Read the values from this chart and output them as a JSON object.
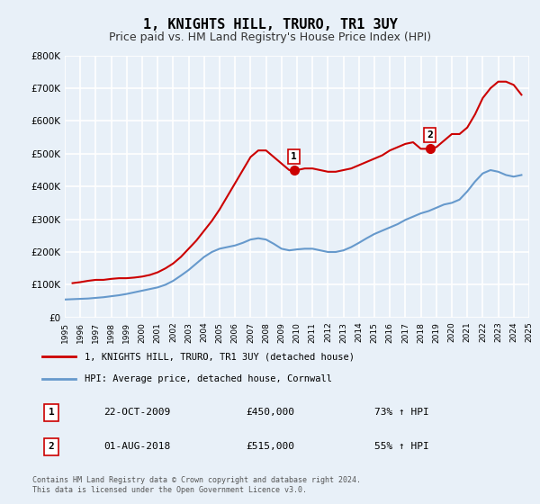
{
  "title": "1, KNIGHTS HILL, TRURO, TR1 3UY",
  "subtitle": "Price paid vs. HM Land Registry's House Price Index (HPI)",
  "title_fontsize": 11,
  "subtitle_fontsize": 9,
  "ylabel": "",
  "ylim": [
    0,
    800000
  ],
  "yticks": [
    0,
    100000,
    200000,
    300000,
    400000,
    500000,
    600000,
    700000,
    800000
  ],
  "ytick_labels": [
    "£0",
    "£100K",
    "£200K",
    "£300K",
    "£400K",
    "£500K",
    "£600K",
    "£700K",
    "£800K"
  ],
  "background_color": "#e8f0f8",
  "plot_bg_color": "#e8f0f8",
  "grid_color": "#ffffff",
  "house_color": "#cc0000",
  "hpi_color": "#6699cc",
  "legend_label_house": "1, KNIGHTS HILL, TRURO, TR1 3UY (detached house)",
  "legend_label_hpi": "HPI: Average price, detached house, Cornwall",
  "sale1_label": "1",
  "sale1_date": "22-OCT-2009",
  "sale1_price": "£450,000",
  "sale1_hpi": "73% ↑ HPI",
  "sale1_x": 2009.81,
  "sale1_y": 450000,
  "sale2_label": "2",
  "sale2_date": "01-AUG-2018",
  "sale2_price": "£515,000",
  "sale2_hpi": "55% ↑ HPI",
  "sale2_x": 2018.58,
  "sale2_y": 515000,
  "footnote": "Contains HM Land Registry data © Crown copyright and database right 2024.\nThis data is licensed under the Open Government Licence v3.0.",
  "xticks": [
    1995,
    1996,
    1997,
    1998,
    1999,
    2000,
    2001,
    2002,
    2003,
    2004,
    2005,
    2006,
    2007,
    2008,
    2009,
    2010,
    2011,
    2012,
    2013,
    2014,
    2015,
    2016,
    2017,
    2018,
    2019,
    2020,
    2021,
    2022,
    2023,
    2024,
    2025
  ],
  "house_x": [
    1995.5,
    1996.0,
    1996.5,
    1997.0,
    1997.5,
    1998.0,
    1998.5,
    1999.0,
    1999.5,
    2000.0,
    2000.5,
    2001.0,
    2001.5,
    2002.0,
    2002.5,
    2003.0,
    2003.5,
    2004.0,
    2004.5,
    2005.0,
    2005.5,
    2006.0,
    2006.5,
    2007.0,
    2007.5,
    2008.0,
    2008.5,
    2009.0,
    2009.5,
    2010.0,
    2010.5,
    2011.0,
    2011.5,
    2012.0,
    2012.5,
    2013.0,
    2013.5,
    2014.0,
    2014.5,
    2015.0,
    2015.5,
    2016.0,
    2016.5,
    2017.0,
    2017.5,
    2018.0,
    2018.5,
    2019.0,
    2019.5,
    2020.0,
    2020.5,
    2021.0,
    2021.5,
    2022.0,
    2022.5,
    2023.0,
    2023.5,
    2024.0,
    2024.5
  ],
  "house_y": [
    105000,
    108000,
    112000,
    115000,
    115000,
    118000,
    120000,
    120000,
    122000,
    125000,
    130000,
    138000,
    150000,
    165000,
    185000,
    210000,
    235000,
    265000,
    295000,
    330000,
    370000,
    410000,
    450000,
    490000,
    510000,
    510000,
    490000,
    470000,
    450000,
    450000,
    455000,
    455000,
    450000,
    445000,
    445000,
    450000,
    455000,
    465000,
    475000,
    485000,
    495000,
    510000,
    520000,
    530000,
    535000,
    515000,
    515000,
    520000,
    540000,
    560000,
    560000,
    580000,
    620000,
    670000,
    700000,
    720000,
    720000,
    710000,
    680000
  ],
  "hpi_x": [
    1995.0,
    1995.5,
    1996.0,
    1996.5,
    1997.0,
    1997.5,
    1998.0,
    1998.5,
    1999.0,
    1999.5,
    2000.0,
    2000.5,
    2001.0,
    2001.5,
    2002.0,
    2002.5,
    2003.0,
    2003.5,
    2004.0,
    2004.5,
    2005.0,
    2005.5,
    2006.0,
    2006.5,
    2007.0,
    2007.5,
    2008.0,
    2008.5,
    2009.0,
    2009.5,
    2010.0,
    2010.5,
    2011.0,
    2011.5,
    2012.0,
    2012.5,
    2013.0,
    2013.5,
    2014.0,
    2014.5,
    2015.0,
    2015.5,
    2016.0,
    2016.5,
    2017.0,
    2017.5,
    2018.0,
    2018.5,
    2019.0,
    2019.5,
    2020.0,
    2020.5,
    2021.0,
    2021.5,
    2022.0,
    2022.5,
    2023.0,
    2023.5,
    2024.0,
    2024.5
  ],
  "hpi_y": [
    55000,
    56000,
    57000,
    58000,
    60000,
    62000,
    65000,
    68000,
    72000,
    77000,
    82000,
    87000,
    92000,
    100000,
    112000,
    128000,
    145000,
    165000,
    185000,
    200000,
    210000,
    215000,
    220000,
    228000,
    238000,
    242000,
    238000,
    225000,
    210000,
    205000,
    208000,
    210000,
    210000,
    205000,
    200000,
    200000,
    205000,
    215000,
    228000,
    242000,
    255000,
    265000,
    275000,
    285000,
    298000,
    308000,
    318000,
    325000,
    335000,
    345000,
    350000,
    360000,
    385000,
    415000,
    440000,
    450000,
    445000,
    435000,
    430000,
    435000
  ]
}
